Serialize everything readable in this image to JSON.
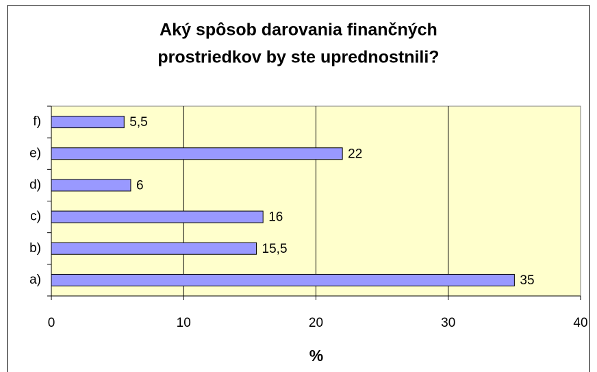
{
  "chart_data": {
    "type": "hbar",
    "title": [
      "Aký spôsob darovania finančných",
      "prostriedkov by ste uprednostnili?"
    ],
    "x_label": "%",
    "categories": [
      "a)",
      "b)",
      "c)",
      "d)",
      "e)",
      "f)"
    ],
    "values": [
      35,
      15.5,
      16,
      6,
      22,
      5.5
    ],
    "value_labels": [
      "35",
      "15,5",
      "16",
      "6",
      "22",
      "5,5"
    ],
    "color": "#9999ff",
    "xlim": [
      0,
      40
    ],
    "xticks": [
      0,
      10,
      20,
      30,
      40
    ],
    "grid": true
  }
}
